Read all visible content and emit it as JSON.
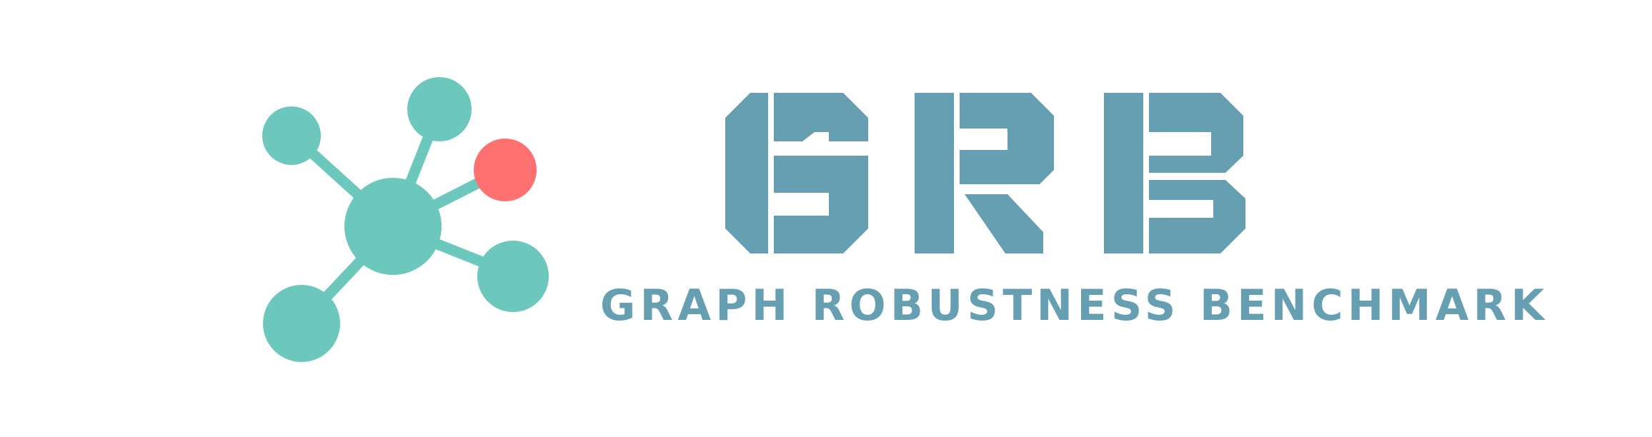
{
  "logo": {
    "letters": [
      "G",
      "R",
      "B"
    ],
    "subtitle": "GRAPH ROBUSTNESS BENCHMARK",
    "icon_name": "graph-network-icon",
    "colors": {
      "node": "#6cc8bd",
      "highlight_node": "#ff7070",
      "text": "#669fb2",
      "background": "#ffffff"
    }
  }
}
